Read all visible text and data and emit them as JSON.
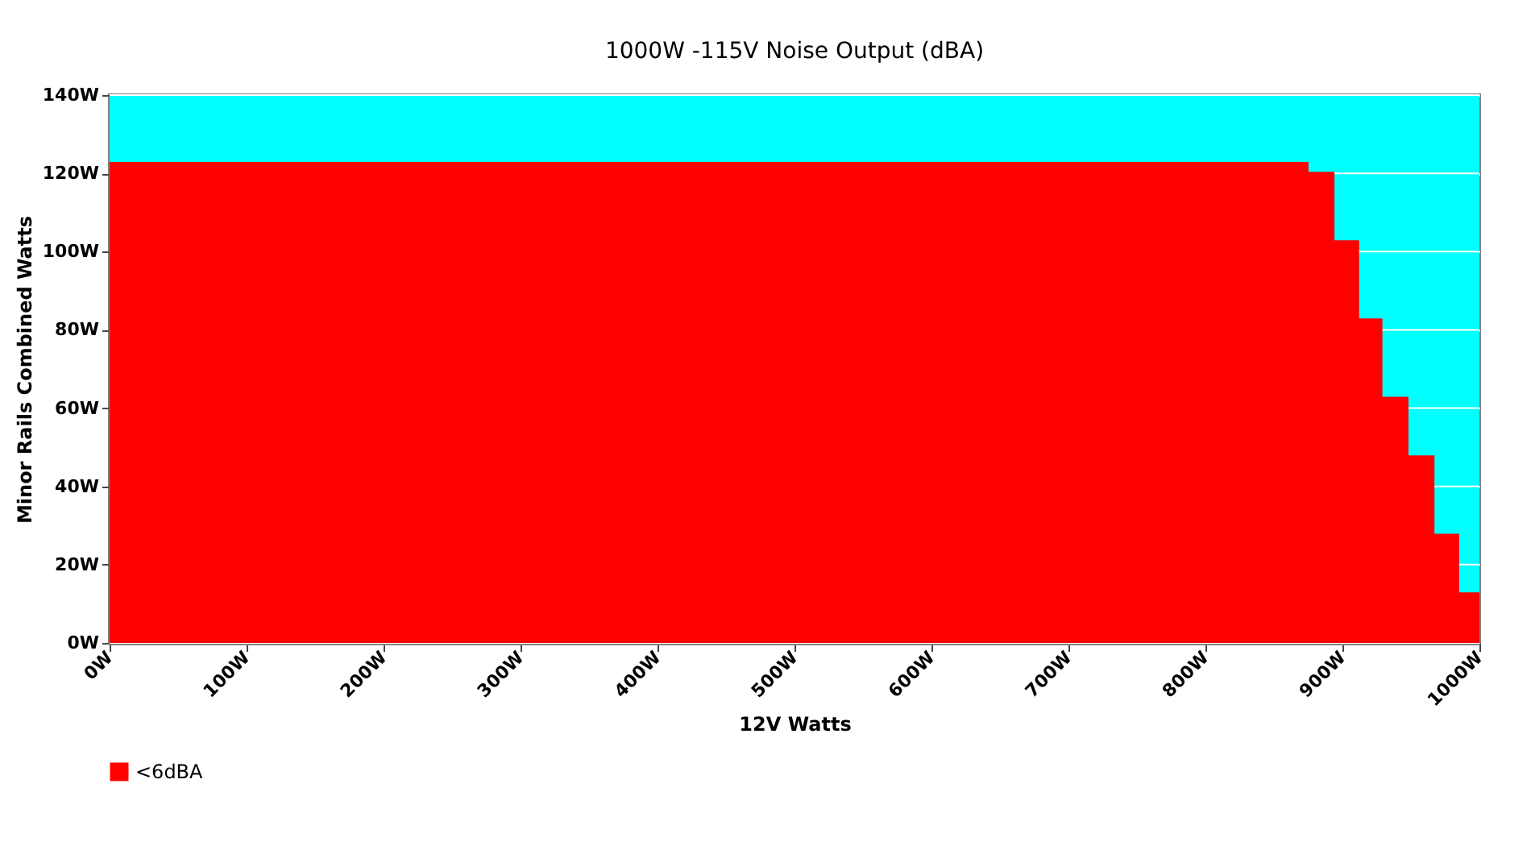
{
  "chart_data": {
    "type": "area",
    "title": "1000W -115V Noise Output (dBA)",
    "xlabel": "12V Watts",
    "ylabel": "Minor Rails Combined Watts",
    "x": [
      0,
      874,
      874,
      893,
      893,
      911,
      911,
      928,
      928,
      947,
      947,
      966,
      966,
      984,
      984,
      1000
    ],
    "series": [
      {
        "name": "<6dBA",
        "color": "#ff0000",
        "values": [
          122.5,
          122.5,
          120,
          120,
          102.5,
          102.5,
          82.5,
          82.5,
          62.5,
          62.5,
          47.5,
          47.5,
          27.5,
          27.5,
          12.5,
          12.5
        ]
      }
    ],
    "bands": [
      {
        "axis": "y",
        "from": 0,
        "to": 140,
        "color": "#00ffff"
      }
    ],
    "xlim": [
      0,
      1000
    ],
    "ylim": [
      0,
      140
    ],
    "xticks": [
      {
        "value": 0,
        "label": "0W"
      },
      {
        "value": 100,
        "label": "100W"
      },
      {
        "value": 200,
        "label": "200W"
      },
      {
        "value": 300,
        "label": "300W"
      },
      {
        "value": 400,
        "label": "400W"
      },
      {
        "value": 500,
        "label": "500W"
      },
      {
        "value": 600,
        "label": "600W"
      },
      {
        "value": 700,
        "label": "700W"
      },
      {
        "value": 800,
        "label": "800W"
      },
      {
        "value": 900,
        "label": "900W"
      },
      {
        "value": 1000,
        "label": "1000W"
      }
    ],
    "yticks": [
      {
        "value": 0,
        "label": "0W"
      },
      {
        "value": 20,
        "label": "20W"
      },
      {
        "value": 40,
        "label": "40W"
      },
      {
        "value": 60,
        "label": "60W"
      },
      {
        "value": 80,
        "label": "80W"
      },
      {
        "value": 100,
        "label": "100W"
      },
      {
        "value": 120,
        "label": "120W"
      },
      {
        "value": 140,
        "label": "140W"
      }
    ],
    "grid": "y",
    "legend": "bottom"
  }
}
